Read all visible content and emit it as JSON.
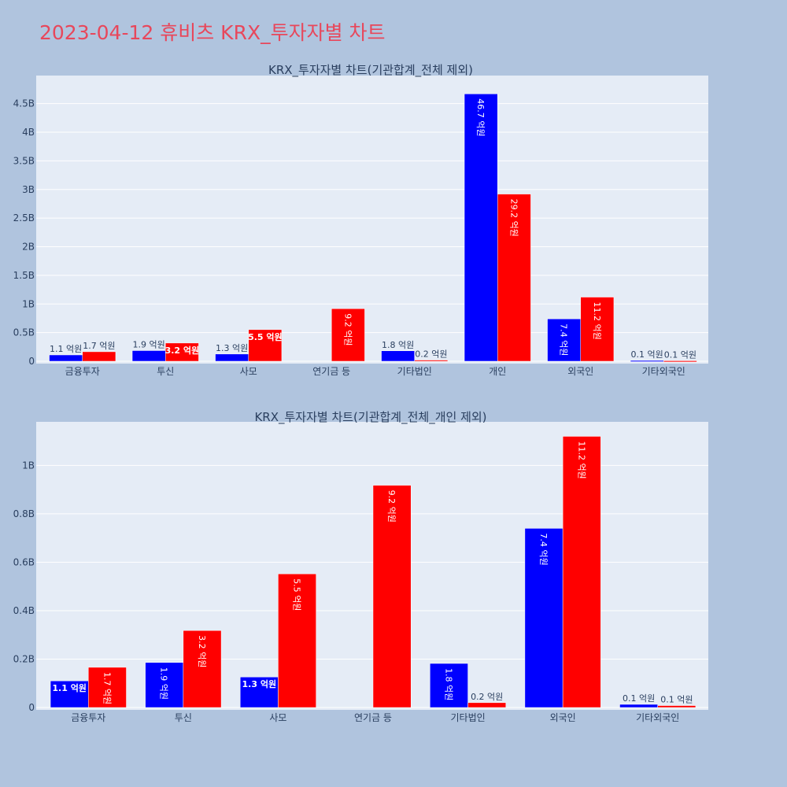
{
  "page": {
    "title": "2023-04-12 휴비츠 KRX_투자자별 차트"
  },
  "colors": {
    "buy": "#0000ff",
    "sell": "#ff0000",
    "plot_bg": "#e5ecf6",
    "grid": "#ffffff",
    "page_bg": "#b0c4de"
  },
  "chart_data": [
    {
      "type": "bar",
      "title": "KRX_투자자별 차트(기관합계_전체 제외)",
      "categories": [
        "금융투자",
        "투신",
        "사모",
        "연기금 등",
        "기타법인",
        "개인",
        "외국인",
        "기타외국인"
      ],
      "series": [
        {
          "values": [
            110000000,
            186000000,
            126000000,
            0,
            182000000,
            4670000000,
            740000000,
            13000000
          ],
          "labels": [
            "1.1 억원",
            "1.9 억원",
            "1.3 억원",
            "",
            "1.8 억원",
            "46.7 억원",
            "7.4 억원",
            "0.1 억원"
          ]
        },
        {
          "values": [
            166000000,
            318000000,
            552000000,
            918000000,
            20000000,
            2920000000,
            1120000000,
            8000000
          ],
          "labels": [
            "1.7 억원",
            "3.2 억원",
            "5.5 억원",
            "9.2 억원",
            "0.2 억원",
            "29.2 억원",
            "11.2 억원",
            "0.1 억원"
          ]
        }
      ],
      "ylim": [
        0,
        4990000000
      ],
      "yticks": [
        0,
        500000000,
        1000000000,
        1500000000,
        2000000000,
        2500000000,
        3000000000,
        3500000000,
        4000000000,
        4500000000
      ],
      "ytick_labels": [
        "0",
        "0.5B",
        "1B",
        "1.5B",
        "2B",
        "2.5B",
        "3B",
        "3.5B",
        "4B",
        "4.5B"
      ],
      "grid": true
    },
    {
      "type": "bar",
      "title": "KRX_투자자별 차트(기관합계_전체_개인 제외)",
      "categories": [
        "금융투자",
        "투신",
        "사모",
        "연기금 등",
        "기타법인",
        "외국인",
        "기타외국인"
      ],
      "series": [
        {
          "values": [
            110000000,
            186000000,
            126000000,
            0,
            182000000,
            740000000,
            13000000
          ],
          "labels": [
            "1.1 억원",
            "1.9 억원",
            "1.3 억원",
            "",
            "1.8 억원",
            "7.4 억원",
            "0.1 억원"
          ]
        },
        {
          "values": [
            166000000,
            318000000,
            552000000,
            918000000,
            20000000,
            1120000000,
            8000000
          ],
          "labels": [
            "1.7 억원",
            "3.2 억원",
            "5.5 억원",
            "9.2 억원",
            "0.2 억원",
            "11.2 억원",
            "0.1 억원"
          ]
        }
      ],
      "ylim": [
        0,
        1180000000
      ],
      "yticks": [
        0,
        200000000,
        400000000,
        600000000,
        800000000,
        1000000000
      ],
      "ytick_labels": [
        "0",
        "0.2B",
        "0.4B",
        "0.6B",
        "0.8B",
        "1B"
      ],
      "grid": true
    }
  ]
}
